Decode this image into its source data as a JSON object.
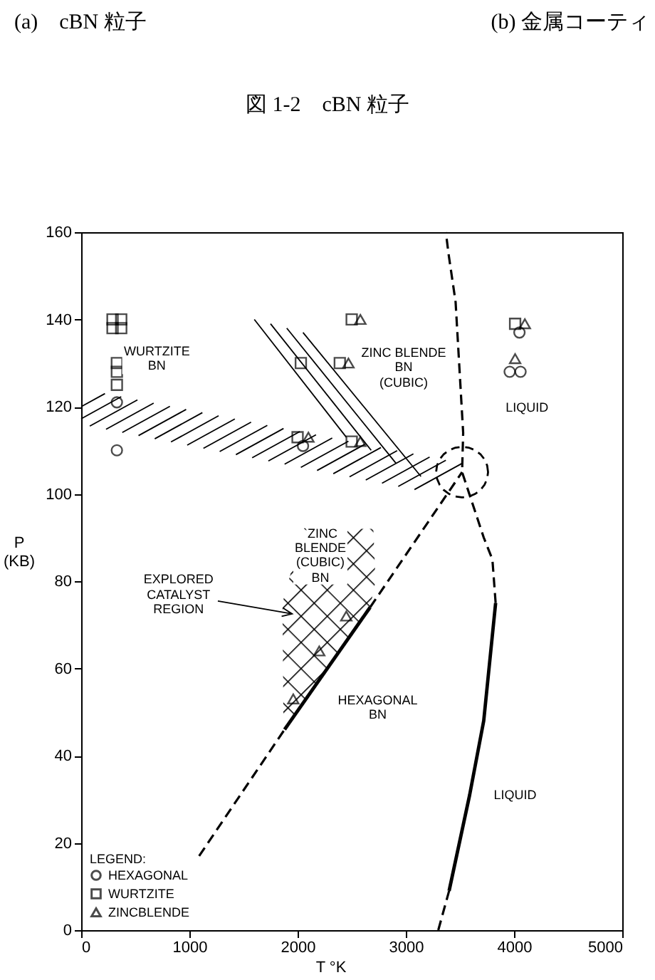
{
  "chart_data": {
    "type": "scatter",
    "title": "図 1-2　cBN 粒子",
    "xlabel": "T °K",
    "ylabel": "P\n(KB)",
    "legend_title": "LEGEND:",
    "legend": "bottom left",
    "grid": false,
    "xlim": [
      0,
      5000
    ],
    "xticks": [
      0,
      1000,
      2000,
      3000,
      4000,
      5000
    ],
    "ylim": [
      0,
      160
    ],
    "yticks": [
      0,
      20,
      40,
      60,
      80,
      100,
      120,
      140,
      160
    ],
    "annotations": [
      "(a)　cBN 粒子",
      "(b) 金属コーティ",
      "WURTZITE\nBN",
      "ZINC BLENDE\nBN\n(CUBIC)",
      "LIQUID",
      {
        "text": "`ZINC\nBLENDE\n(CUBIC)\nBN",
        "x": 2210,
        "y": 86
      },
      "EXPLORED\nCATALYST\nREGION",
      "HEXAGONAL\nBN",
      "LIQUID"
    ],
    "series": [
      {
        "name": "HEXAGONAL",
        "type": "scatter",
        "marker": "circle",
        "color": "#000000",
        "x": [
          330,
          330,
          2050,
          4050,
          3960,
          4060
        ],
        "values": [
          121,
          110,
          111,
          137,
          128,
          128
        ]
      },
      {
        "name": "WURTZITE",
        "type": "scatter",
        "marker": "square",
        "color": "#000000",
        "x": [
          290,
          370,
          290,
          370,
          330,
          330,
          330,
          2000,
          2030,
          2500,
          2390,
          2500,
          4010
        ],
        "values": [
          140,
          140,
          138,
          138,
          130,
          128,
          125,
          113,
          130,
          140,
          130,
          112,
          139
        ]
      },
      {
        "name": "ZINCBLENDE",
        "type": "scatter",
        "marker": "triangle",
        "color": "#000000",
        "x": [
          2100,
          2580,
          2470,
          2580,
          4100,
          4010,
          1960,
          2200,
          2450
        ],
        "values": [
          113,
          140,
          130,
          112,
          139,
          131,
          53,
          64,
          72
        ]
      },
      {
        "type": "line",
        "line_style": "dashed",
        "color": "#000000",
        "x": [
          1090,
          1880
        ],
        "values": [
          17,
          46
        ]
      },
      {
        "type": "line",
        "line_style": "solid",
        "color": "#000000",
        "x": [
          1880,
          2670
        ],
        "values": [
          46,
          74
        ]
      },
      {
        "type": "line",
        "line_style": "dashed",
        "color": "#000000",
        "x": [
          2670,
          3520
        ],
        "values": [
          74,
          105
        ]
      },
      {
        "type": "line",
        "line_style": "dashed",
        "color": "#000000",
        "x": [
          3300,
          3400
        ],
        "values": [
          0,
          9
        ]
      },
      {
        "type": "line",
        "line_style": "solid",
        "color": "#000000",
        "x": [
          3400,
          3590,
          3720,
          3830
        ],
        "values": [
          9,
          31,
          48,
          75
        ]
      },
      {
        "type": "line",
        "line_style": "dashed",
        "color": "#000000",
        "x": [
          3830,
          3800,
          3720,
          3520,
          3530,
          3460,
          3395,
          3370
        ],
        "values": [
          75,
          85,
          90,
          105,
          114,
          144,
          155,
          160
        ]
      }
    ]
  }
}
